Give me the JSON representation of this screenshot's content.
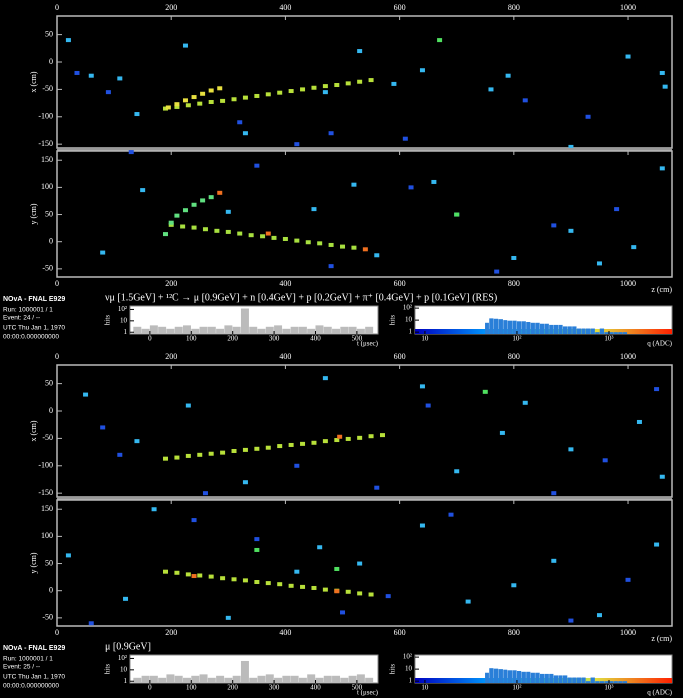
{
  "events": [
    {
      "info": {
        "title": "NOvA - FNAL E929",
        "run": "Run:  1000001 / 1",
        "event": "Event: 24 / --",
        "utc": "UTC Thu Jan 1, 1970",
        "time": "00:00:0.000000000"
      },
      "interaction": "νμ [1.5GeV] + ¹²C → μ [0.9GeV] + n [0.4GeV] + p [0.2GeV] + π⁺ [0.4GeV] + p [0.1GeV] (RES)",
      "xz": {
        "y_label": "x (cm)",
        "xlim": [
          0,
          1077
        ],
        "ylim": [
          -157,
          84
        ],
        "xticks": [
          0,
          200,
          400,
          600,
          800,
          1000
        ],
        "yticks": [
          50,
          0,
          -50,
          -100,
          -150
        ],
        "hits": [
          {
            "color": "#b8e03a",
            "z": [
              190,
              210,
              230,
              250,
              270,
              290,
              310,
              330,
              350,
              370,
              390,
              410,
              430,
              450,
              470,
              490,
              510,
              530,
              550
            ],
            "v": [
              -85,
              -82,
              -79,
              -76,
              -73,
              -71,
              -68,
              -65,
              -62,
              -59,
              -56,
              -53,
              -50,
              -47,
              -44,
              -42,
              -39,
              -36,
              -33
            ]
          },
          {
            "color": "#e8e040",
            "z": [
              195,
              210,
              225,
              240,
              255,
              270,
              285
            ],
            "v": [
              -83,
              -77,
              -70,
              -64,
              -58,
              -52,
              -48
            ]
          },
          {
            "color": "#35b8f0",
            "z": [
              20,
              60,
              110,
              140,
              225,
              330,
              470,
              530,
              590,
              640,
              760,
              790,
              900,
              1000,
              1060,
              1065
            ],
            "v": [
              40,
              -25,
              -30,
              -95,
              30,
              -130,
              -55,
              20,
              -40,
              -15,
              -50,
              -25,
              -155,
              10,
              -20,
              -45
            ]
          },
          {
            "color": "#2050e0",
            "z": [
              35,
              90,
              320,
              420,
              480,
              610,
              820,
              930
            ],
            "v": [
              -20,
              -55,
              -110,
              -150,
              -130,
              -140,
              -70,
              -100
            ]
          },
          {
            "color": "#50e060",
            "z": [
              670
            ],
            "v": [
              40
            ]
          }
        ]
      },
      "yz": {
        "y_label": "y (cm)",
        "x_label": "z (cm)",
        "xlim": [
          0,
          1077
        ],
        "ylim": [
          -65,
          167
        ],
        "xticks": [
          0,
          200,
          400,
          600,
          800,
          1000
        ],
        "yticks": [
          150,
          100,
          50,
          0,
          -50
        ],
        "hits": [
          {
            "color": "#a8e040",
            "z": [
              200,
              220,
              240,
              260,
              280,
              300,
              320,
              340,
              360,
              380,
              400,
              420,
              440,
              460,
              480,
              500,
              520
            ],
            "v": [
              31,
              28,
              26,
              23,
              20,
              18,
              15,
              12,
              10,
              7,
              5,
              2,
              -1,
              -3,
              -6,
              -9,
              -11
            ]
          },
          {
            "color": "#60e080",
            "z": [
              190,
              200,
              210,
              225,
              240,
              255,
              270
            ],
            "v": [
              14,
              35,
              48,
              58,
              68,
              76,
              82
            ]
          },
          {
            "color": "#f07020",
            "z": [
              285,
              370,
              540
            ],
            "v": [
              90,
              15,
              -14
            ]
          },
          {
            "color": "#35b8f0",
            "z": [
              80,
              150,
              300,
              450,
              520,
              560,
              660,
              700,
              800,
              900,
              950,
              1010,
              1060
            ],
            "v": [
              -20,
              95,
              55,
              60,
              105,
              -25,
              110,
              50,
              -30,
              20,
              -40,
              -10,
              135
            ]
          },
          {
            "color": "#2050e0",
            "z": [
              130,
              350,
              480,
              620,
              770,
              870,
              980
            ],
            "v": [
              165,
              140,
              -45,
              100,
              -55,
              30,
              60
            ]
          },
          {
            "color": "#50e060",
            "z": [
              700
            ],
            "v": [
              50
            ]
          }
        ]
      },
      "time_hist": {
        "x_label": "t (μsec)",
        "y_label": "hits",
        "xlim": [
          -48,
          551
        ],
        "ylim": [
          0.7,
          200
        ],
        "log_y": true,
        "xticks": [
          0,
          100,
          200,
          300,
          400,
          500
        ],
        "yticks": [
          1,
          10,
          {
            "value": 100,
            "label": "10²"
          }
        ],
        "bins": [
          -40,
          -20,
          0,
          20,
          40,
          60,
          80,
          100,
          120,
          140,
          160,
          180,
          200,
          220,
          240,
          260,
          280,
          300,
          320,
          340,
          360,
          380,
          400,
          420,
          440,
          460,
          480,
          500,
          520,
          540
        ],
        "counts": [
          3,
          2,
          4,
          3,
          2,
          3,
          4,
          2,
          3,
          3,
          2,
          4,
          3,
          120,
          3,
          2,
          3,
          4,
          2,
          3,
          3,
          2,
          4,
          3,
          2,
          3,
          3,
          2,
          3
        ]
      },
      "charge_hist": {
        "x_label": "q (ADC)",
        "y_label": "hits",
        "xlim": [
          7.8,
          4840
        ],
        "ylim": [
          0.7,
          150
        ],
        "log_x": true,
        "log_y": true,
        "xticks": [
          10,
          {
            "value": 100,
            "label": "10²"
          },
          {
            "value": 1000,
            "label": "10³"
          }
        ],
        "yticks": [
          1,
          10,
          {
            "value": 100,
            "label": "10²"
          }
        ],
        "bins": [
          45,
          50,
          56,
          63,
          71,
          79,
          89,
          100,
          112,
          126,
          141,
          158,
          178,
          200,
          224,
          251,
          282,
          316,
          355,
          398,
          447,
          501,
          562,
          631,
          708,
          794,
          891,
          1000,
          1122,
          1259,
          1413,
          1585
        ],
        "counts": [
          6,
          14,
          13,
          12,
          10,
          9,
          9,
          8,
          8,
          7,
          6,
          6,
          5,
          5,
          4,
          4,
          4,
          3,
          3,
          3,
          2,
          2,
          2,
          2,
          1,
          2,
          1,
          1,
          1,
          1,
          1
        ]
      }
    },
    {
      "info": {
        "title": "NOvA - FNAL E929",
        "run": "Run:  1000001 / 1",
        "event": "Event: 25 / --",
        "utc": "UTC Thu Jan 1, 1970",
        "time": "00:00:0.000000000"
      },
      "interaction": "μ [0.9GeV]",
      "xz": {
        "y_label": "x (cm)",
        "xlim": [
          0,
          1077
        ],
        "ylim": [
          -157,
          84
        ],
        "xticks": [
          0,
          200,
          400,
          600,
          800,
          1000
        ],
        "yticks": [
          50,
          0,
          -50,
          -100,
          -150
        ],
        "hits": [
          {
            "color": "#b8e03a",
            "z": [
              190,
              210,
              230,
              250,
              270,
              290,
              310,
              330,
              350,
              370,
              390,
              410,
              430,
              450,
              470,
              490,
              510,
              530,
              550,
              570
            ],
            "v": [
              -87,
              -85,
              -82,
              -80,
              -78,
              -76,
              -73,
              -71,
              -69,
              -67,
              -64,
              -62,
              -60,
              -58,
              -55,
              -53,
              -51,
              -49,
              -46,
              -44
            ]
          },
          {
            "color": "#f07020",
            "z": [
              495
            ],
            "v": [
              -47
            ]
          },
          {
            "color": "#35b8f0",
            "z": [
              50,
              140,
              230,
              330,
              470,
              640,
              700,
              780,
              820,
              900,
              1020,
              1060
            ],
            "v": [
              30,
              -55,
              10,
              -130,
              60,
              45,
              -110,
              -40,
              15,
              -70,
              -20,
              -120
            ]
          },
          {
            "color": "#2050e0",
            "z": [
              80,
              110,
              260,
              420,
              560,
              650,
              870,
              960,
              1050
            ],
            "v": [
              -30,
              -80,
              -150,
              -100,
              -140,
              10,
              -150,
              -90,
              40
            ]
          },
          {
            "color": "#50e060",
            "z": [
              750
            ],
            "v": [
              35
            ]
          }
        ]
      },
      "yz": {
        "y_label": "y (cm)",
        "x_label": "z (cm)",
        "xlim": [
          0,
          1077
        ],
        "ylim": [
          -65,
          167
        ],
        "xticks": [
          0,
          200,
          400,
          600,
          800,
          1000
        ],
        "yticks": [
          150,
          100,
          50,
          0,
          -50
        ],
        "hits": [
          {
            "color": "#b8e03a",
            "z": [
              190,
              210,
              230,
              250,
              270,
              290,
              310,
              330,
              350,
              370,
              390,
              410,
              430,
              450,
              470,
              490,
              510,
              530,
              550
            ],
            "v": [
              35,
              33,
              30,
              28,
              26,
              23,
              21,
              19,
              16,
              14,
              12,
              9,
              7,
              5,
              2,
              0,
              -2,
              -5,
              -7
            ]
          },
          {
            "color": "#f07020",
            "z": [
              240,
              490
            ],
            "v": [
              27,
              -1
            ]
          },
          {
            "color": "#35b8f0",
            "z": [
              20,
              120,
              170,
              300,
              420,
              460,
              530,
              640,
              720,
              800,
              870,
              950,
              1050
            ],
            "v": [
              65,
              -15,
              150,
              -50,
              35,
              80,
              50,
              120,
              -20,
              10,
              55,
              -45,
              85
            ]
          },
          {
            "color": "#2050e0",
            "z": [
              60,
              240,
              350,
              500,
              580,
              690,
              900,
              1000
            ],
            "v": [
              -60,
              130,
              95,
              -40,
              -10,
              140,
              -55,
              20
            ]
          },
          {
            "color": "#50e060",
            "z": [
              490,
              350
            ],
            "v": [
              40,
              75
            ]
          }
        ]
      },
      "time_hist": {
        "x_label": "t (μsec)",
        "y_label": "hits",
        "xlim": [
          -48,
          551
        ],
        "ylim": [
          0.7,
          200
        ],
        "log_y": true,
        "xticks": [
          0,
          100,
          200,
          300,
          400,
          500
        ],
        "yticks": [
          1,
          10,
          {
            "value": 100,
            "label": "10²"
          }
        ],
        "bins": [
          -40,
          -20,
          0,
          20,
          40,
          60,
          80,
          100,
          120,
          140,
          160,
          180,
          200,
          220,
          240,
          260,
          280,
          300,
          320,
          340,
          360,
          380,
          400,
          420,
          440,
          460,
          480,
          500,
          520,
          540
        ],
        "counts": [
          2,
          3,
          3,
          2,
          4,
          3,
          2,
          3,
          4,
          2,
          3,
          2,
          3,
          60,
          2,
          3,
          4,
          2,
          3,
          3,
          2,
          4,
          2,
          3,
          3,
          2,
          3,
          4,
          2
        ]
      },
      "charge_hist": {
        "x_label": "q (ADC)",
        "y_label": "hits",
        "xlim": [
          7.8,
          4840
        ],
        "ylim": [
          0.7,
          150
        ],
        "log_x": true,
        "log_y": true,
        "xticks": [
          10,
          {
            "value": 100,
            "label": "10²"
          },
          {
            "value": 1000,
            "label": "10³"
          }
        ],
        "yticks": [
          1,
          10,
          {
            "value": 100,
            "label": "10²"
          }
        ],
        "bins": [
          45,
          50,
          56,
          63,
          71,
          79,
          89,
          100,
          112,
          126,
          141,
          158,
          178,
          200,
          224,
          251,
          282,
          316,
          355,
          398,
          447,
          501,
          562,
          631,
          708,
          794,
          891,
          1000,
          1122,
          1259,
          1413,
          1585
        ],
        "counts": [
          5,
          12,
          11,
          10,
          9,
          8,
          8,
          7,
          6,
          6,
          5,
          5,
          4,
          4,
          4,
          3,
          3,
          3,
          2,
          2,
          2,
          2,
          1,
          2,
          1,
          1,
          1,
          1,
          1,
          1,
          1
        ]
      }
    }
  ]
}
